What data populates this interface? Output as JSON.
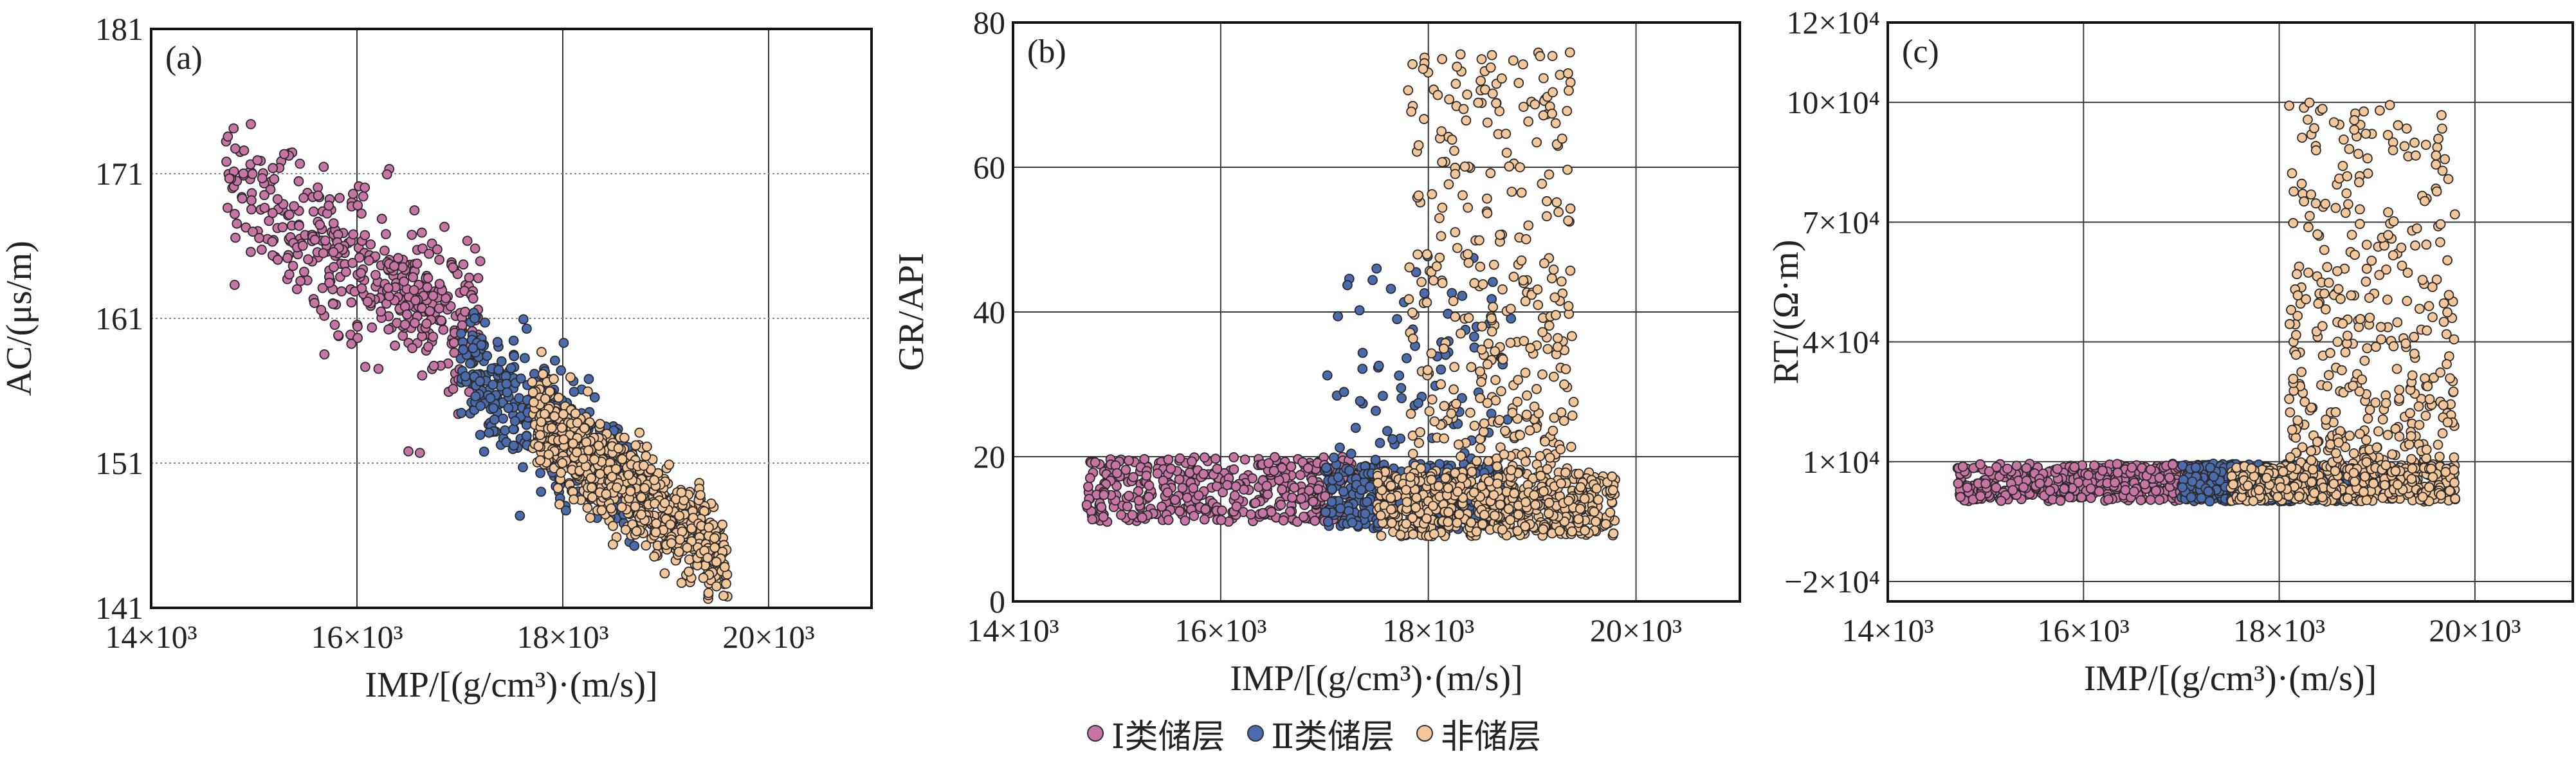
{
  "chart_data": [
    {
      "type": "scatter",
      "panel_label": "(a)",
      "xlabel": "IMP/[(g/cm³)·(m/s)]",
      "ylabel": "AC/(μs/m)",
      "xlim": [
        14000,
        21000
      ],
      "ylim": [
        141,
        181
      ],
      "x_ticks": [
        14000,
        16000,
        18000,
        20000
      ],
      "x_tick_labels": [
        "14×10³",
        "16×10³",
        "18×10³",
        "20×10³"
      ],
      "y_ticks": [
        141,
        151,
        161,
        171,
        181
      ],
      "y_tick_labels": [
        "141",
        "151",
        "161",
        "171",
        "181"
      ],
      "grid": "vertical solid, horizontal dotted",
      "series": [
        {
          "name": "Ⅰ类储层",
          "x_range": [
            14700,
            17200
          ],
          "y_center_at_x_start": 171,
          "slope_per_1000": -4.6,
          "spread": 2.6,
          "count": 430,
          "note": "scatter cloud, negative trend"
        },
        {
          "name": "Ⅱ类储层",
          "x_range": [
            17000,
            18700
          ],
          "y_center_at_x_start": 158,
          "slope_per_1000": -5.0,
          "spread": 2.0,
          "count": 420
        },
        {
          "name": "非储层",
          "x_range": [
            17700,
            19600
          ],
          "y_center_at_x_start": 154,
          "slope_per_1000": -5.0,
          "spread": 1.5,
          "count": 900
        }
      ]
    },
    {
      "type": "scatter",
      "panel_label": "(b)",
      "xlabel": "IMP/[(g/cm³)·(m/s)]",
      "ylabel": "GR/API",
      "xlim": [
        14000,
        21000
      ],
      "ylim": [
        0,
        80
      ],
      "x_ticks": [
        14000,
        16000,
        18000,
        20000
      ],
      "x_tick_labels": [
        "14×10³",
        "16×10³",
        "18×10³",
        "20×10³"
      ],
      "y_ticks": [
        0,
        20,
        40,
        60,
        80
      ],
      "y_tick_labels": [
        "0",
        "20",
        "40",
        "60",
        "80"
      ],
      "grid": "solid",
      "series": [
        {
          "name": "Ⅰ类储层",
          "x_range": [
            14700,
            17300
          ],
          "y_range": [
            11,
            20
          ],
          "count": 420
        },
        {
          "name": "Ⅱ类储层",
          "x_range": [
            17000,
            18800
          ],
          "y_range": [
            10,
            48
          ],
          "count": 420
        },
        {
          "name": "非储层",
          "x_range": [
            17500,
            19800
          ],
          "y_range": [
            9,
            76
          ],
          "count": 900
        }
      ]
    },
    {
      "type": "scatter",
      "panel_label": "(c)",
      "xlabel": "IMP/[(g/cm³)·(m/s)]",
      "ylabel": "RT/(Ω·m)",
      "xlim": [
        14000,
        21000
      ],
      "ylim": [
        -25000,
        120000
      ],
      "x_ticks": [
        14000,
        16000,
        18000,
        20000
      ],
      "x_tick_labels": [
        "14×10³",
        "16×10³",
        "18×10³",
        "20×10³"
      ],
      "y_ticks": [
        -20000,
        10000,
        40000,
        70000,
        100000,
        120000
      ],
      "y_tick_labels": [
        "−2×10⁴",
        "1×10⁴",
        "4×10⁴",
        "7×10⁴",
        "10×10⁴",
        "12×10⁴"
      ],
      "grid": "solid",
      "series": [
        {
          "name": "Ⅰ类储层",
          "x_range": [
            14700,
            17300
          ],
          "y_range": [
            0,
            10000
          ],
          "count": 420
        },
        {
          "name": "Ⅱ类储层",
          "x_range": [
            17000,
            18800
          ],
          "y_range": [
            0,
            10000
          ],
          "count": 420
        },
        {
          "name": "非储层",
          "x_range": [
            17500,
            19800
          ],
          "y_range": [
            0,
            100000
          ],
          "count": 900
        }
      ]
    }
  ],
  "legend": [
    {
      "label": "Ⅰ类储层",
      "color": "#c874a4"
    },
    {
      "label": "Ⅱ类储层",
      "color": "#4a6cae"
    },
    {
      "label": "非储层",
      "color": "#f4c79a"
    }
  ],
  "colors": {
    "type1": "#c874a4",
    "type2": "#4a6cae",
    "non": "#f4c79a",
    "marker_edge": "#2a2a2a",
    "grid": "#3a3a3a"
  }
}
